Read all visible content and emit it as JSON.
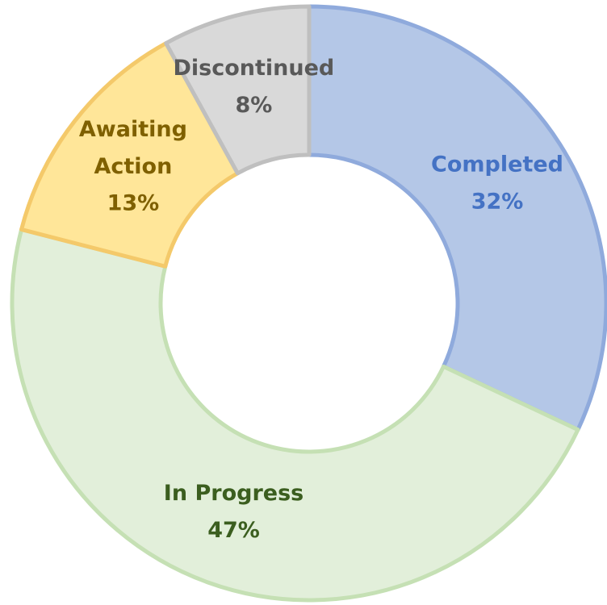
{
  "chart_data": {
    "type": "donut",
    "categories": [
      "Completed",
      "In Progress",
      "Awaiting Action",
      "Discontinued"
    ],
    "values": [
      32,
      47,
      13,
      8
    ],
    "value_labels": [
      "32%",
      "47%",
      "13%",
      "8%"
    ],
    "colors": [
      "#b4c7e7",
      "#e2efda",
      "#ffe699",
      "#d9d9d9"
    ]
  }
}
